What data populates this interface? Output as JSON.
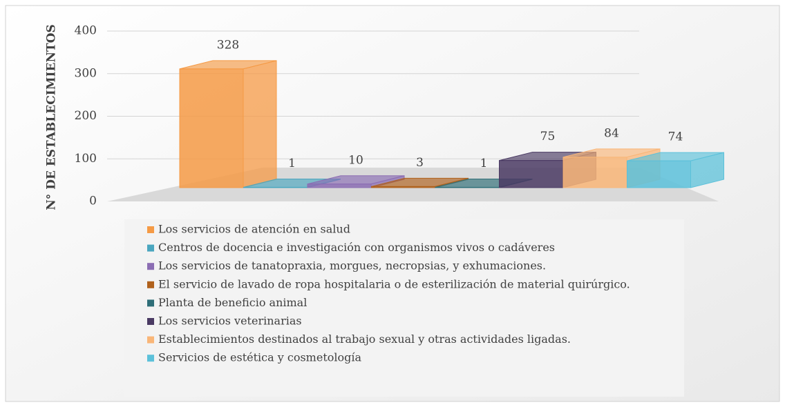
{
  "chart_data": {
    "type": "bar",
    "ylabel": "N° DE ESTABLECIMIENTOS",
    "ylim": [
      0,
      400
    ],
    "yticks": [
      0,
      100,
      200,
      300,
      400
    ],
    "grid": true,
    "legend": "bottom",
    "series": [
      {
        "name": "Los servicios de atención en salud",
        "color": "#f59a45",
        "values": [
          328
        ]
      },
      {
        "name": "Centros de docencia e investigación  con organismos vivos o cadáveres",
        "color": "#4aa6bf",
        "values": [
          1
        ]
      },
      {
        "name": "Los servicios de tanatopraxia, morgues, necropsias, y exhumaciones.",
        "color": "#8b6db3",
        "values": [
          10
        ]
      },
      {
        "name": "El servicio de lavado de ropa hospitalaria o de esterilización de material quirúrgico.",
        "color": "#b0611c",
        "values": [
          3
        ]
      },
      {
        "name": "Planta de beneficio animal",
        "color": "#2e6e78",
        "values": [
          1
        ]
      },
      {
        "name": "Los servicios veterinarias",
        "color": "#4a3a63",
        "values": [
          75
        ]
      },
      {
        "name": "Establecimientos destinados al trabajo sexual y otras actividades ligadas.",
        "color": "#f9b678",
        "values": [
          84
        ]
      },
      {
        "name": "Servicios de estética y cosmetología",
        "color": "#5cc1da",
        "values": [
          74
        ]
      }
    ]
  }
}
